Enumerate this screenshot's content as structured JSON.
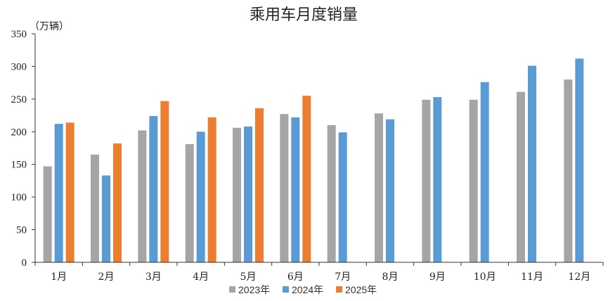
{
  "chart_data": {
    "type": "bar",
    "title": "乘用车月度销量",
    "unit_label": "（万辆）",
    "categories": [
      "1月",
      "2月",
      "3月",
      "4月",
      "5月",
      "6月",
      "7月",
      "8月",
      "9月",
      "10月",
      "11月",
      "12月"
    ],
    "ylim": [
      0,
      350
    ],
    "yticks": [
      "0",
      "50",
      "100",
      "150",
      "200",
      "250",
      "300",
      "350"
    ],
    "legend_position": "bottom",
    "grid": false,
    "series": [
      {
        "name": "2023年",
        "color": "#a5a5a5",
        "values": [
          147,
          165,
          202,
          181,
          206,
          227,
          210,
          228,
          249,
          249,
          261,
          280
        ]
      },
      {
        "name": "2024年",
        "color": "#5b9bd5",
        "values": [
          212,
          133,
          224,
          200,
          208,
          222,
          199,
          219,
          253,
          276,
          301,
          312
        ]
      },
      {
        "name": "2025年",
        "color": "#ed7d31",
        "values": [
          214,
          182,
          247,
          222,
          236,
          255,
          null,
          null,
          null,
          null,
          null,
          null
        ]
      }
    ]
  }
}
